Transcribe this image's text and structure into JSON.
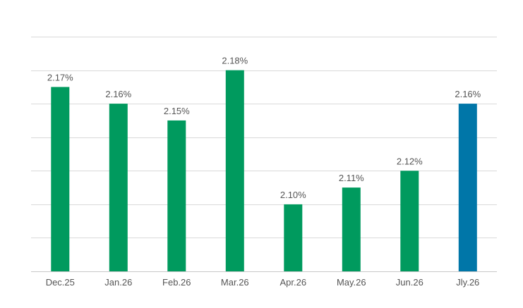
{
  "chart_data": {
    "type": "bar",
    "categories": [
      "Dec.25",
      "Jan.26",
      "Feb.26",
      "Mar.26",
      "Apr.26",
      "May.26",
      "Jun.26",
      "Jly.26"
    ],
    "values": [
      2.17,
      2.16,
      2.15,
      2.18,
      2.1,
      2.11,
      2.12,
      2.16
    ],
    "data_labels": [
      "2.17%",
      "2.16%",
      "2.15%",
      "2.18%",
      "2.10%",
      "2.11%",
      "2.12%",
      "2.16%"
    ],
    "ylim": [
      2.06,
      2.2
    ],
    "grid": true,
    "colors": {
      "default_bar": "#009A5E",
      "highlight_bar": "#0076A8"
    },
    "highlight_index": 7
  }
}
